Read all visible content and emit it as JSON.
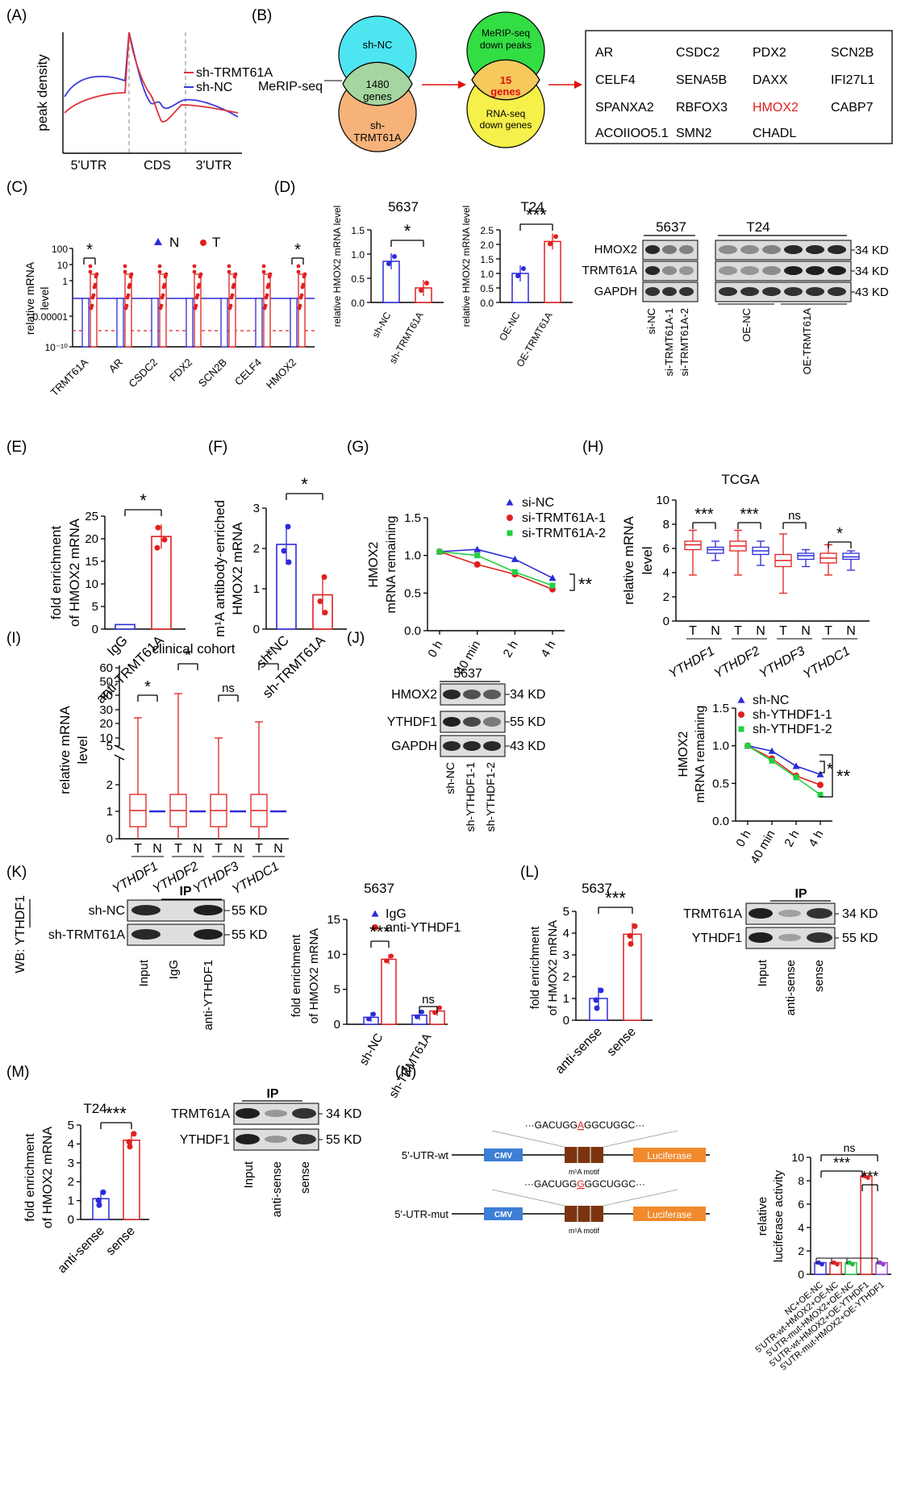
{
  "panel_letters": [
    "(A)",
    "(B)",
    "(C)",
    "(D)",
    "(E)",
    "(F)",
    "(G)",
    "(H)",
    "(I)",
    "(J)",
    "(K)",
    "(L)",
    "(M)",
    "(N)"
  ],
  "panelA": {
    "ylabel": "peak density",
    "xlabels": [
      "5'UTR",
      "CDS",
      "3'UTR"
    ],
    "legend": [
      {
        "name": "sh-TRMT61A",
        "color": "#e0303a"
      },
      {
        "name": "sh-NC",
        "color": "#3a3ad8"
      }
    ]
  },
  "panelB": {
    "method": "MeRIP-seq",
    "venn1": {
      "left": "sh-NC",
      "right": "sh-TRMT61A",
      "overlap": "1480",
      "overlap_sub": "genes"
    },
    "venn2": {
      "top": "MeRIP-seq down peaks",
      "bottom": "RNA-seq down genes",
      "overlap": "15",
      "overlap_sub": "genes"
    },
    "genes": [
      "AR",
      "CSDC2",
      "PDX2",
      "SCN2B",
      "CELF4",
      "SENA5B",
      "DAXX",
      "IFI27L1",
      "SPANXA2",
      "RBFOX3",
      "HMOX2",
      "CABP7",
      "ACOIIOO5.1",
      "SMN2",
      "CHADL"
    ],
    "highlight": "HMOX2"
  },
  "panelC": {
    "ylabel": "relative mRNA level",
    "yticks": [
      "100",
      "10",
      "1",
      "0.00001",
      "10⁻¹⁰"
    ],
    "legend": [
      "N",
      "T"
    ],
    "categories": [
      "TRMT61A",
      "AR",
      "CSDC2",
      "FDX2",
      "SCN2B",
      "CELF4",
      "HMOX2"
    ],
    "sig": [
      "*",
      "",
      "",
      "",
      "",
      "",
      "*"
    ]
  },
  "panelD": {
    "plot1": {
      "title": "5637",
      "ylabel": "relative HMOX2 mRNA level",
      "xlabels": [
        "sh-NC",
        "sh-TRMT61A"
      ],
      "sig": "*",
      "yticks": [
        "0.0",
        "0.5",
        "1.0",
        "1.5"
      ]
    },
    "plot2": {
      "title": "T24",
      "ylabel": "relative HMOX2 mRNA level",
      "xlabels": [
        "OE-NC",
        "OE-TRMT61A"
      ],
      "sig": "***",
      "yticks": [
        "0.0",
        "0.5",
        "1.0",
        "1.5",
        "2.0",
        "2.5"
      ]
    },
    "blot": {
      "cells": [
        "5637",
        "T24"
      ],
      "rows": [
        "HMOX2",
        "TRMT61A",
        "GAPDH"
      ],
      "kd": [
        "34 KD",
        "34 KD",
        "43 KD"
      ],
      "lanes": [
        "si-NC",
        "si-TRMT61A-1",
        "si-TRMT61A-2",
        "OE-NC",
        "OE-TRMT61A"
      ]
    }
  },
  "panelE": {
    "ylabel": "fold enrichment of HMOX2 mRNA",
    "xlabels": [
      "IgG",
      "anti-TRMT61A"
    ],
    "sig": "*",
    "yticks": [
      "0",
      "5",
      "10",
      "15",
      "20",
      "25"
    ]
  },
  "panelF": {
    "ylabel_line1": "m¹A antibody-enriched",
    "ylabel_line2": "HMOX2 mRNA",
    "xlabels": [
      "sh-NC",
      "sh-TRMT61A"
    ],
    "sig": "*",
    "yticks": [
      "0",
      "1",
      "2",
      "3"
    ]
  },
  "panelG": {
    "ylabel": "HMOX2 mRNA remaining",
    "xlabels": [
      "0 h",
      "40 min",
      "2 h",
      "4 h"
    ],
    "legend": [
      "si-NC",
      "si-TRMT61A-1",
      "si-TRMT61A-2"
    ],
    "sig": "**",
    "yticks": [
      "0.0",
      "0.5",
      "1.0",
      "1.5"
    ]
  },
  "panelH": {
    "title": "TCGA",
    "ylabel": "relative mRNA level",
    "groups": [
      "YTHDF1",
      "YTHDF2",
      "YTHDF3",
      "YTHDC1"
    ],
    "tn": [
      "T",
      "N"
    ],
    "sig": [
      "***",
      "***",
      "ns",
      "*"
    ],
    "yticks": [
      "0",
      "2",
      "4",
      "6",
      "8",
      "10"
    ]
  },
  "panelI": {
    "title": "clinical cohort",
    "ylabel": "relative mRNA level",
    "groups": [
      "YTHDF1",
      "YTHDF2",
      "YTHDF3",
      "YTHDC1"
    ],
    "tn": [
      "T",
      "N"
    ],
    "sig": [
      "*",
      "*",
      "ns",
      "*"
    ],
    "yticks_top": [
      "60",
      "50",
      "40",
      "30",
      "20",
      "10",
      "5"
    ],
    "yticks_bottom": [
      "2",
      "1",
      "0"
    ]
  },
  "panelJ": {
    "blot": {
      "cell": "5637",
      "rows": [
        "HMOX2",
        "YTHDF1",
        "GAPDH"
      ],
      "kd": [
        "34 KD",
        "55 KD",
        "43 KD"
      ],
      "lanes": [
        "sh-NC",
        "sh-YTHDF1-1",
        "sh-YTHDF1-2"
      ]
    },
    "chart": {
      "ylabel": "HMOX2 mRNA remaining",
      "legend": [
        "sh-NC",
        "sh-YTHDF1-1",
        "sh-YTHDF1-2"
      ],
      "xlabels": [
        "0 h",
        "40 min",
        "2 h",
        "4 h"
      ],
      "sig": [
        "*",
        "**"
      ],
      "yticks": [
        "0.0",
        "0.5",
        "1.0",
        "1.5"
      ]
    }
  },
  "panelK": {
    "blot": {
      "wb": "WB: YTHDF1",
      "ip": "IP",
      "rows": [
        "sh-NC",
        "sh-TRMT61A"
      ],
      "kd": [
        "55 KD",
        "55 KD"
      ],
      "lanes": [
        "Input",
        "IgG",
        "anti-YTHDF1"
      ]
    },
    "chart": {
      "title": "5637",
      "ylabel": "fold enrichment of HMOX2 mRNA",
      "legend": [
        "IgG",
        "anti-YTHDF1"
      ],
      "xlabels": [
        "sh-NC",
        "sh-TRMT61A"
      ],
      "sig": [
        "***",
        "ns"
      ],
      "yticks": [
        "0",
        "5",
        "10",
        "15"
      ]
    }
  },
  "panelL": {
    "chart": {
      "title": "5637",
      "ylabel": "fold enrichment of HMOX2 mRNA",
      "xlabels": [
        "anti-sense",
        "sense"
      ],
      "sig": "***",
      "yticks": [
        "0",
        "1",
        "2",
        "3",
        "4",
        "5"
      ]
    },
    "blot": {
      "ip": "IP",
      "rows": [
        "TRMT61A",
        "YTHDF1"
      ],
      "kd": [
        "34 KD",
        "55 KD"
      ],
      "lanes": [
        "Input",
        "anti-sense",
        "sense"
      ]
    }
  },
  "panelM": {
    "chart": {
      "title": "T24",
      "ylabel": "fold enrichment of HMOX2 mRNA",
      "xlabels": [
        "anti-sense",
        "sense"
      ],
      "sig": "***",
      "yticks": [
        "0",
        "1",
        "2",
        "3",
        "4",
        "5"
      ]
    },
    "blot": {
      "ip": "IP",
      "rows": [
        "TRMT61A",
        "YTHDF1"
      ],
      "kd": [
        "34 KD",
        "55 KD"
      ],
      "lanes": [
        "Input",
        "anti-sense",
        "sense"
      ]
    }
  },
  "panelN": {
    "constructs": [
      {
        "name": "5'-UTR-wt",
        "seq_pre": "···GACUGG",
        "seq_mark": "A",
        "seq_post": "GGCUGGC···"
      },
      {
        "name": "5'-UTR-mut",
        "seq_pre": "···GACUGG",
        "seq_mark": "G",
        "seq_post": "GGCUGGC···"
      }
    ],
    "promoter": "CMV",
    "reporter": "Luciferase",
    "motif": "m¹A motif",
    "chart": {
      "ylabel": "relative luciferase activity",
      "yticks": [
        "0",
        "2",
        "4",
        "6",
        "8",
        "10"
      ],
      "xlabels": [
        "NC+OE-NC",
        "5'UTR-wt-HMOX2+OE-NC",
        "5'UTR-mut-HMOX2+OE-NC",
        "5'UTR-wt-HMOX2+OE-YTHDF1",
        "5'UTR-mut-HMOX2+OE-YTHDF1"
      ],
      "sig": [
        "ns",
        "***",
        "***"
      ],
      "colors": [
        "#2b2bd8",
        "#e02020",
        "#20c040",
        "#e02020",
        "#9040d0"
      ]
    }
  },
  "chart_data": [
    {
      "type": "line",
      "panel": "G",
      "x": [
        "0 h",
        "40 min",
        "2 h",
        "4 h"
      ],
      "ylabel": "HMOX2 mRNA remaining",
      "ylim": [
        0,
        1.5
      ],
      "series": [
        {
          "name": "si-NC",
          "values": [
            1.05,
            1.08,
            0.95,
            0.7
          ]
        },
        {
          "name": "si-TRMT61A-1",
          "values": [
            1.05,
            0.88,
            0.75,
            0.55
          ]
        },
        {
          "name": "si-TRMT61A-2",
          "values": [
            1.05,
            1.0,
            0.78,
            0.6
          ]
        }
      ]
    },
    {
      "type": "line",
      "panel": "J",
      "x": [
        "0 h",
        "40 min",
        "2 h",
        "4 h"
      ],
      "ylabel": "HMOX2 mRNA remaining",
      "ylim": [
        0,
        1.5
      ],
      "series": [
        {
          "name": "sh-NC",
          "values": [
            1.0,
            0.93,
            0.73,
            0.62
          ]
        },
        {
          "name": "sh-YTHDF1-1",
          "values": [
            1.0,
            0.83,
            0.6,
            0.48
          ]
        },
        {
          "name": "sh-YTHDF1-2",
          "values": [
            1.0,
            0.8,
            0.58,
            0.35
          ]
        }
      ]
    },
    {
      "type": "bar",
      "panel": "D-5637",
      "categories": [
        "sh-NC",
        "sh-TRMT61A"
      ],
      "values": [
        0.85,
        0.3
      ],
      "ylim": [
        0,
        1.5
      ]
    },
    {
      "type": "bar",
      "panel": "D-T24",
      "categories": [
        "OE-NC",
        "OE-TRMT61A"
      ],
      "values": [
        1.0,
        2.1
      ],
      "ylim": [
        0,
        2.5
      ]
    },
    {
      "type": "bar",
      "panel": "E",
      "categories": [
        "IgG",
        "anti-TRMT61A"
      ],
      "values": [
        1,
        20.5
      ],
      "ylim": [
        0,
        25
      ]
    },
    {
      "type": "bar",
      "panel": "F",
      "categories": [
        "sh-NC",
        "sh-TRMT61A"
      ],
      "values": [
        2.1,
        0.85
      ],
      "ylim": [
        0,
        3
      ]
    },
    {
      "type": "bar",
      "panel": "K",
      "categories": [
        "sh-NC",
        "sh-TRMT61A"
      ],
      "series": [
        {
          "name": "IgG",
          "values": [
            1.0,
            1.3
          ]
        },
        {
          "name": "anti-YTHDF1",
          "values": [
            9.3,
            1.9
          ]
        }
      ],
      "ylim": [
        0,
        15
      ]
    },
    {
      "type": "bar",
      "panel": "L",
      "categories": [
        "anti-sense",
        "sense"
      ],
      "values": [
        1.0,
        3.95
      ],
      "ylim": [
        0,
        5
      ]
    },
    {
      "type": "bar",
      "panel": "M",
      "categories": [
        "anti-sense",
        "sense"
      ],
      "values": [
        1.1,
        4.2
      ],
      "ylim": [
        0,
        5
      ]
    },
    {
      "type": "bar",
      "panel": "N",
      "categories": [
        "NC+OE-NC",
        "5'UTR-wt-HMOX2+OE-NC",
        "5'UTR-mut-HMOX2+OE-NC",
        "5'UTR-wt-HMOX2+OE-YTHDF1",
        "5'UTR-mut-HMOX2+OE-YTHDF1"
      ],
      "values": [
        1.0,
        1.0,
        1.0,
        8.4,
        1.0
      ],
      "ylim": [
        0,
        10
      ]
    }
  ]
}
